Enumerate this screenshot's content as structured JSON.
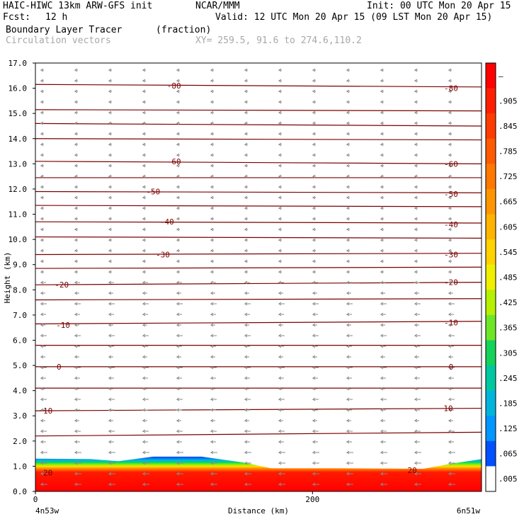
{
  "header": {
    "model": "HAIC-HIWC 13km ARW-GFS init",
    "org": "NCAR/MMM",
    "init": "Init: 00 UTC Mon 20 Apr 15",
    "fcst_label": "Fcst:",
    "fcst_value": "12 h",
    "valid": "Valid: 12 UTC Mon 20 Apr 15 (09 LST Mon 20 Apr 15)",
    "field": "Boundary Layer Tracer",
    "units": "(fraction)",
    "vectors": "Circulation vectors",
    "xy": "XY= 259.5, 91.6 to 274.6,110.2"
  },
  "chart_data": {
    "type": "cross-section",
    "ylabel": "Height (km)",
    "xlabel": "Distance (km)",
    "ylim": [
      0,
      17
    ],
    "xlim": [
      0,
      322
    ],
    "yticks": [
      "0.0",
      "1.0",
      "2.0",
      "3.0",
      "4.0",
      "5.0",
      "6.0",
      "7.0",
      "8.0",
      "9.0",
      "10.0",
      "11.0",
      "12.0",
      "13.0",
      "14.0",
      "15.0",
      "16.0",
      "17.0"
    ],
    "xticks": [
      {
        "value": 0,
        "label": "0"
      },
      {
        "value": 200,
        "label": "200"
      }
    ],
    "left_endpoint": "4n53w",
    "right_endpoint": "6n51w",
    "colorbar": {
      "labels": [
        "–",
        ".905",
        ".845",
        ".785",
        ".725",
        ".665",
        ".605",
        ".545",
        ".485",
        ".425",
        ".365",
        ".305",
        ".245",
        ".185",
        ".125",
        ".065",
        ".005"
      ],
      "colors": [
        "#ff0000",
        "#ff1f00",
        "#ff3c00",
        "#ff5a00",
        "#ff7800",
        "#ff9600",
        "#ffb400",
        "#ffd200",
        "#f0ef00",
        "#b4f000",
        "#6ee628",
        "#14d25a",
        "#00c8a0",
        "#00b4dc",
        "#0096ff",
        "#0050ff",
        "#ffffff"
      ]
    },
    "contour_labels": [
      {
        "value": "-80",
        "x": 100,
        "y": 16.1
      },
      {
        "value": "-80",
        "x": 300,
        "y": 16.0
      },
      {
        "value": "-60",
        "x": 100,
        "y": 13.1
      },
      {
        "value": "-60",
        "x": 300,
        "y": 13.0
      },
      {
        "value": "-50",
        "x": 85,
        "y": 11.9
      },
      {
        "value": "-50",
        "x": 300,
        "y": 11.8
      },
      {
        "value": "-40",
        "x": 95,
        "y": 10.7
      },
      {
        "value": "-40",
        "x": 300,
        "y": 10.6
      },
      {
        "value": "-30",
        "x": 92,
        "y": 9.4
      },
      {
        "value": "-30",
        "x": 300,
        "y": 9.4
      },
      {
        "value": "-20",
        "x": 19,
        "y": 8.2
      },
      {
        "value": "-20",
        "x": 300,
        "y": 8.3
      },
      {
        "value": "-10",
        "x": 20,
        "y": 6.6
      },
      {
        "value": "-10",
        "x": 300,
        "y": 6.7
      },
      {
        "value": "0",
        "x": 17,
        "y": 4.95
      },
      {
        "value": "0",
        "x": 300,
        "y": 4.95
      },
      {
        "value": "10",
        "x": 9,
        "y": 3.2
      },
      {
        "value": "10",
        "x": 298,
        "y": 3.3
      },
      {
        "value": "20",
        "x": 9,
        "y": 0.75
      },
      {
        "value": "20",
        "x": 272,
        "y": 0.85
      }
    ],
    "isotherm_heights_km": [
      [
        16.15,
        16.05
      ],
      [
        15.15,
        15.1
      ],
      [
        14.6,
        14.5
      ],
      [
        14.0,
        13.95
      ],
      [
        13.1,
        13.0
      ],
      [
        12.45,
        12.45
      ],
      [
        11.9,
        11.85
      ],
      [
        11.35,
        11.3
      ],
      [
        10.7,
        10.65
      ],
      [
        10.1,
        10.05
      ],
      [
        9.4,
        9.45
      ],
      [
        8.85,
        8.9
      ],
      [
        8.2,
        8.3
      ],
      [
        7.6,
        7.65
      ],
      [
        6.65,
        6.75
      ],
      [
        5.8,
        5.8
      ],
      [
        4.95,
        4.95
      ],
      [
        4.1,
        4.1
      ],
      [
        3.2,
        3.3
      ],
      [
        2.2,
        2.35
      ]
    ],
    "tracer_top_km": [
      {
        "x": 0,
        "y": 1.3
      },
      {
        "x": 40,
        "y": 1.28
      },
      {
        "x": 60,
        "y": 1.2
      },
      {
        "x": 85,
        "y": 1.38
      },
      {
        "x": 120,
        "y": 1.38
      },
      {
        "x": 150,
        "y": 1.15
      },
      {
        "x": 170,
        "y": 0.92
      },
      {
        "x": 220,
        "y": 0.92
      },
      {
        "x": 280,
        "y": 0.9
      },
      {
        "x": 300,
        "y": 1.1
      },
      {
        "x": 322,
        "y": 1.28
      }
    ]
  }
}
